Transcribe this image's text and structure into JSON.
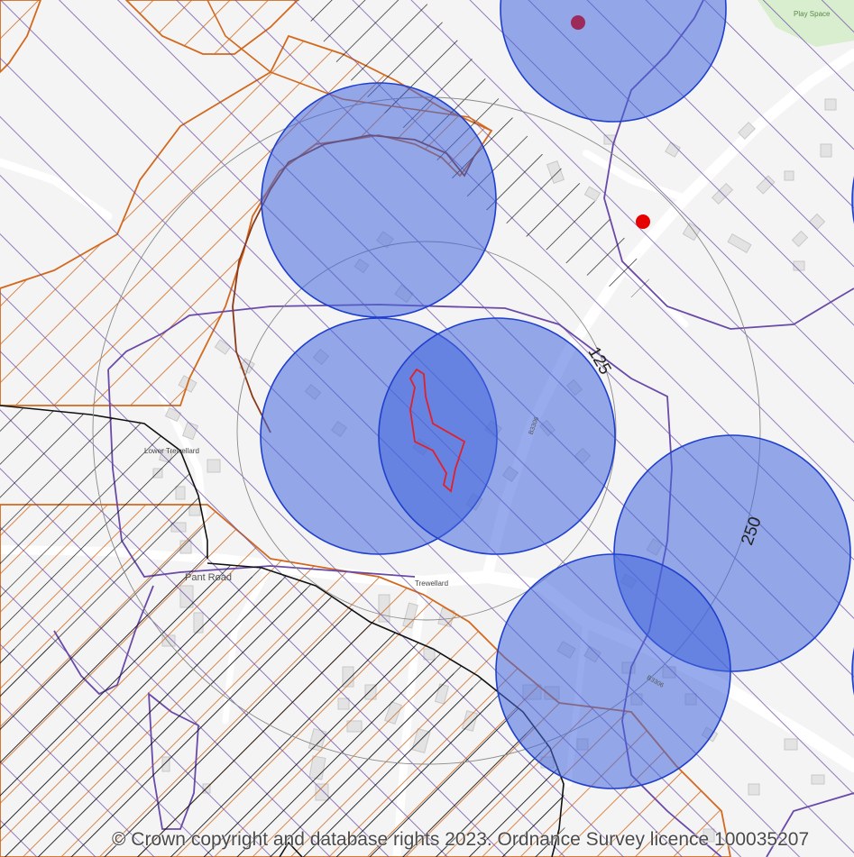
{
  "map": {
    "copyright": "© Crown copyright and database rights 2023. Ordnance Survey licence 100035207",
    "place_labels": {
      "play_space": "Play Space",
      "lower_trewellard": "Lower Trewellard",
      "pant_road": "Pant Road",
      "trewellard": "Trewellard",
      "b3306_north": "B3306",
      "b3306_south": "B3306"
    },
    "buffer_labels": {
      "inner": "125",
      "outer": "250"
    },
    "colors": {
      "background": "#f4f4f4",
      "road": "#ffffff",
      "building": "#e3e3e3",
      "building_edge": "#c8c8c8",
      "black_hatch": "#111111",
      "orange_hatch": "#d2691e",
      "purple_lines": "#6a4aa8",
      "blue_circles": "#4466dd",
      "site_boundary": "#e0202a",
      "point_marker": "#e60000",
      "point_marker_dark": "#9c2a5a",
      "play_space_fill": "#d9edcf"
    },
    "icons": {
      "point_marker": "red-dot-icon",
      "point_marker_dark": "purple-dot-icon"
    }
  }
}
